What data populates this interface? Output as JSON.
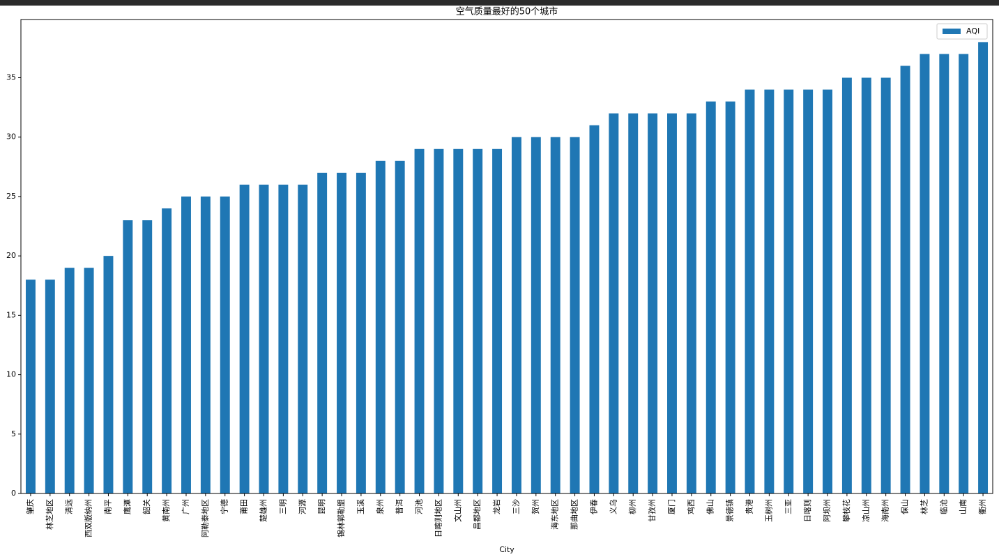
{
  "chart_data": {
    "type": "bar",
    "title": "空气质量最好的50个城市",
    "x_label": "City",
    "categories": [
      "肇庆",
      "林芝地区",
      "清远",
      "西双版纳州",
      "南平",
      "鹰潭",
      "韶关",
      "黄南州",
      "广州",
      "阿勒泰地区",
      "宁德",
      "莆田",
      "楚雄州",
      "三明",
      "河源",
      "昆明",
      "锡林郭勒盟",
      "玉溪",
      "泉州",
      "普洱",
      "河池",
      "日喀则地区",
      "文山州",
      "昌都地区",
      "龙岩",
      "三沙",
      "贺州",
      "海东地区",
      "那曲地区",
      "伊春",
      "义乌",
      "柳州",
      "甘孜州",
      "厦门",
      "鸡西",
      "佛山",
      "景德镇",
      "贵港",
      "玉树州",
      "三亚",
      "日喀则",
      "阿坝州",
      "攀枝花",
      "凉山州",
      "海南州",
      "保山",
      "林芝",
      "临沧",
      "山南",
      "衢州"
    ],
    "series": [
      {
        "name": "AQI",
        "color": "#1f77b4",
        "values": [
          18,
          18,
          19,
          19,
          20,
          23,
          23,
          24,
          25,
          25,
          25,
          26,
          26,
          26,
          26,
          27,
          27,
          27,
          28,
          28,
          29,
          29,
          29,
          29,
          29,
          30,
          30,
          30,
          30,
          31,
          32,
          32,
          32,
          32,
          32,
          33,
          33,
          34,
          34,
          34,
          34,
          34,
          35,
          35,
          35,
          36,
          37,
          37,
          37,
          38
        ]
      }
    ],
    "ylim": [
      0,
      39.9
    ],
    "yticks": [
      0,
      5,
      10,
      15,
      20,
      25,
      30,
      35
    ],
    "grid": false,
    "legend": "upper right"
  }
}
